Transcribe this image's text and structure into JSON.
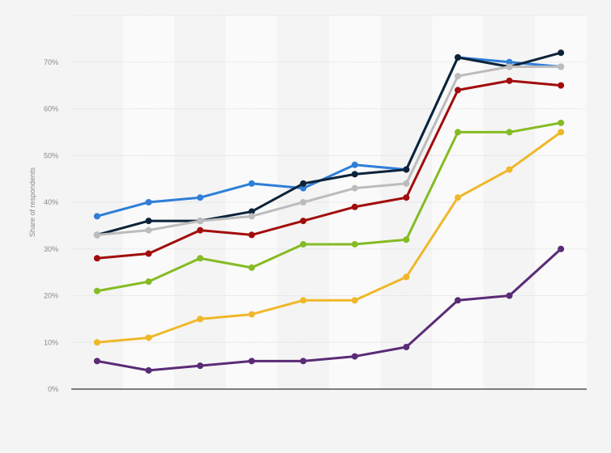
{
  "chart_data": {
    "type": "line",
    "title": "",
    "xlabel": "",
    "ylabel": "Share of respondents",
    "ylim": [
      0,
      80
    ],
    "yticks": [
      "0%",
      "10%",
      "20%",
      "30%",
      "40%",
      "50%",
      "60%",
      "70%"
    ],
    "grid": true,
    "legend": "none",
    "x_count": 10,
    "series": [
      {
        "color": "#2f7ed8",
        "values": [
          37,
          40,
          41,
          44,
          43,
          48,
          47,
          71,
          70,
          69
        ]
      },
      {
        "color": "#0d233a",
        "values": [
          33,
          36,
          36,
          38,
          44,
          46,
          47,
          71,
          69,
          72
        ]
      },
      {
        "color": "#bcbcbc",
        "values": [
          33,
          34,
          36,
          37,
          40,
          43,
          44,
          67,
          69,
          69
        ]
      },
      {
        "color": "#a20c0c",
        "values": [
          28,
          29,
          34,
          33,
          36,
          39,
          41,
          64,
          66,
          65
        ]
      },
      {
        "color": "#85bb24",
        "values": [
          21,
          23,
          28,
          26,
          31,
          31,
          32,
          55,
          55,
          57
        ]
      },
      {
        "color": "#efb82a",
        "values": [
          10,
          11,
          15,
          16,
          19,
          19,
          24,
          41,
          47,
          55
        ]
      },
      {
        "color": "#5a2b76",
        "values": [
          6,
          4,
          5,
          6,
          6,
          7,
          9,
          19,
          20,
          30
        ]
      }
    ]
  }
}
